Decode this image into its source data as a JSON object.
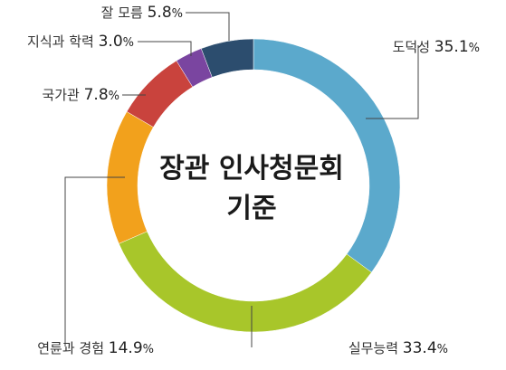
{
  "chart_data": {
    "type": "pie",
    "title_lines": [
      "장관 인사청문회",
      "기준"
    ],
    "categories": [
      "도덕성",
      "실무능력",
      "연륜과 경험",
      "국가관",
      "지식과 학력",
      "잘 모름"
    ],
    "values": [
      35.1,
      33.4,
      14.9,
      7.8,
      3.0,
      5.8
    ],
    "value_labels": [
      "35.1",
      "33.4",
      "14.9",
      "7.8",
      "3.0",
      "5.8"
    ],
    "unit": "%",
    "colors": [
      "#5ba9cc",
      "#a8c62a",
      "#f2a11c",
      "#c9433d",
      "#7a45a0",
      "#2c4d6e"
    ]
  }
}
